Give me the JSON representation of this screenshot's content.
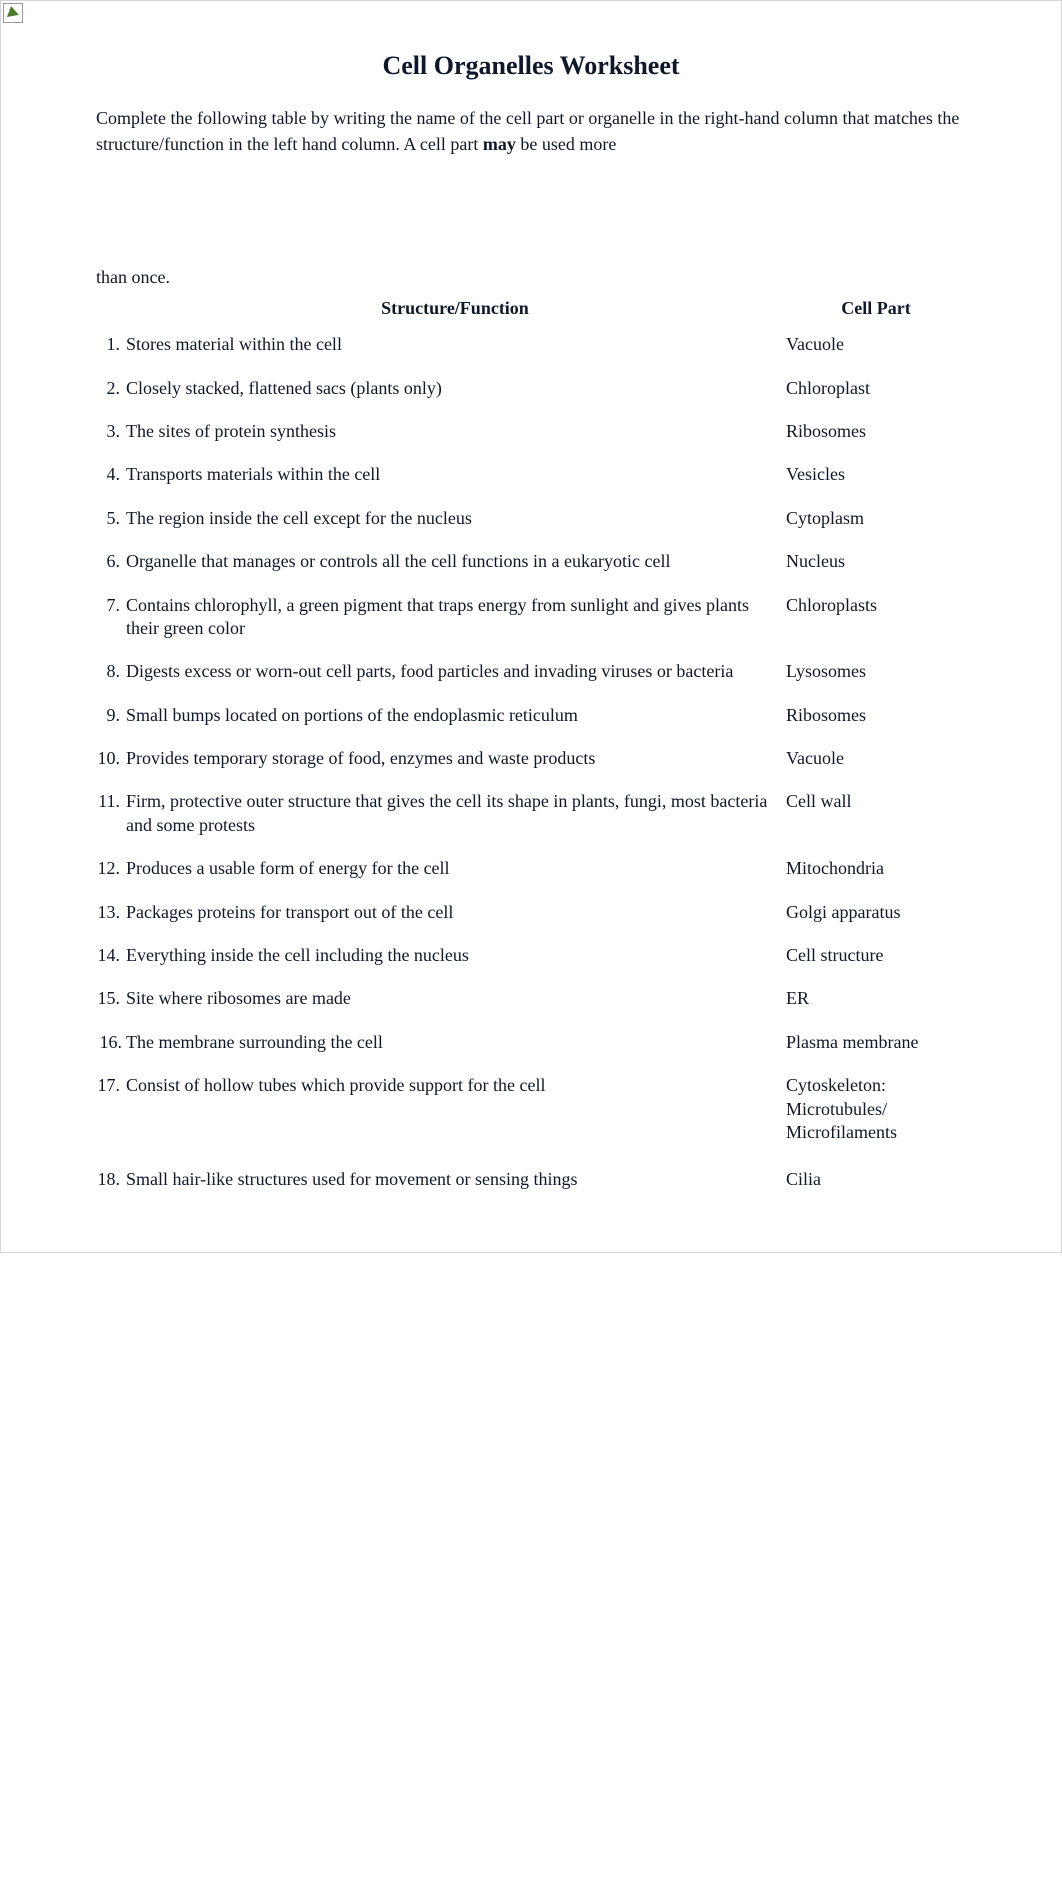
{
  "title": "Cell Organelles Worksheet",
  "intro_part1": "Complete the following table by writing the name of the cell part or organelle in the right-hand column that matches the structure/function in the left hand column. A cell part ",
  "intro_bold": "may",
  "intro_part2": " be used more",
  "intro_rest": "than once.",
  "headers": {
    "sf": "Structure/Function",
    "cp": "Cell Part"
  },
  "rows": [
    {
      "n": "1.",
      "sf": "Stores material within the cell",
      "cp": "Vacuole"
    },
    {
      "n": "2.",
      "sf": "Closely stacked, flattened sacs (plants only)",
      "cp": "Chloroplast"
    },
    {
      "n": "3.",
      "sf": "The sites of protein synthesis",
      "cp": "Ribosomes"
    },
    {
      "n": "4.",
      "sf": "Transports materials within the cell",
      "cp": "Vesicles"
    },
    {
      "n": "5.",
      "sf": "The region inside the cell except for the nucleus",
      "cp": "Cytoplasm"
    },
    {
      "n": "6.",
      "sf": "Organelle that manages or controls all the cell functions in a eukaryotic cell",
      "cp": "Nucleus"
    },
    {
      "n": "7.",
      "sf": "Contains chlorophyll, a green pigment that traps energy from sunlight and gives plants their green color",
      "cp": "Chloroplasts"
    },
    {
      "n": "8.",
      "sf": "Digests excess or worn-out cell parts, food particles and invading viruses or bacteria",
      "cp": "Lysosomes"
    },
    {
      "n": "9.",
      "sf": "Small bumps located on portions of the endoplasmic reticulum",
      "cp": "Ribosomes"
    },
    {
      "n": "10.",
      "sf": "Provides temporary storage of food, enzymes and waste products",
      "cp": "Vacuole"
    },
    {
      "n": "11.",
      "sf": "Firm, protective outer structure that gives the cell its shape in plants, fungi, most bacteria and some protests",
      "cp": "Cell wall"
    },
    {
      "n": "12.",
      "sf": "Produces a usable form of energy for the cell",
      "cp": "Mitochondria"
    },
    {
      "n": "13.",
      "sf": "Packages proteins for transport out of the cell",
      "cp": "Golgi apparatus"
    },
    {
      "n": "14.",
      "sf": "Everything inside the cell including the nucleus",
      "cp": "Cell structure"
    },
    {
      "n": "15.",
      "sf": "Site where ribosomes are made",
      "cp": "ER"
    },
    {
      "n": "16.",
      "sf": "The membrane surrounding the cell",
      "cp": "Plasma membrane"
    },
    {
      "n": "17.",
      "sf": "Consist of hollow tubes which provide support for the cell",
      "cp": "Cytoskeleton: Microtubules/ Microfilaments"
    },
    {
      "n": "18.",
      "sf": "Small hair-like structures used for movement or sensing things",
      "cp": "Cilia"
    }
  ]
}
